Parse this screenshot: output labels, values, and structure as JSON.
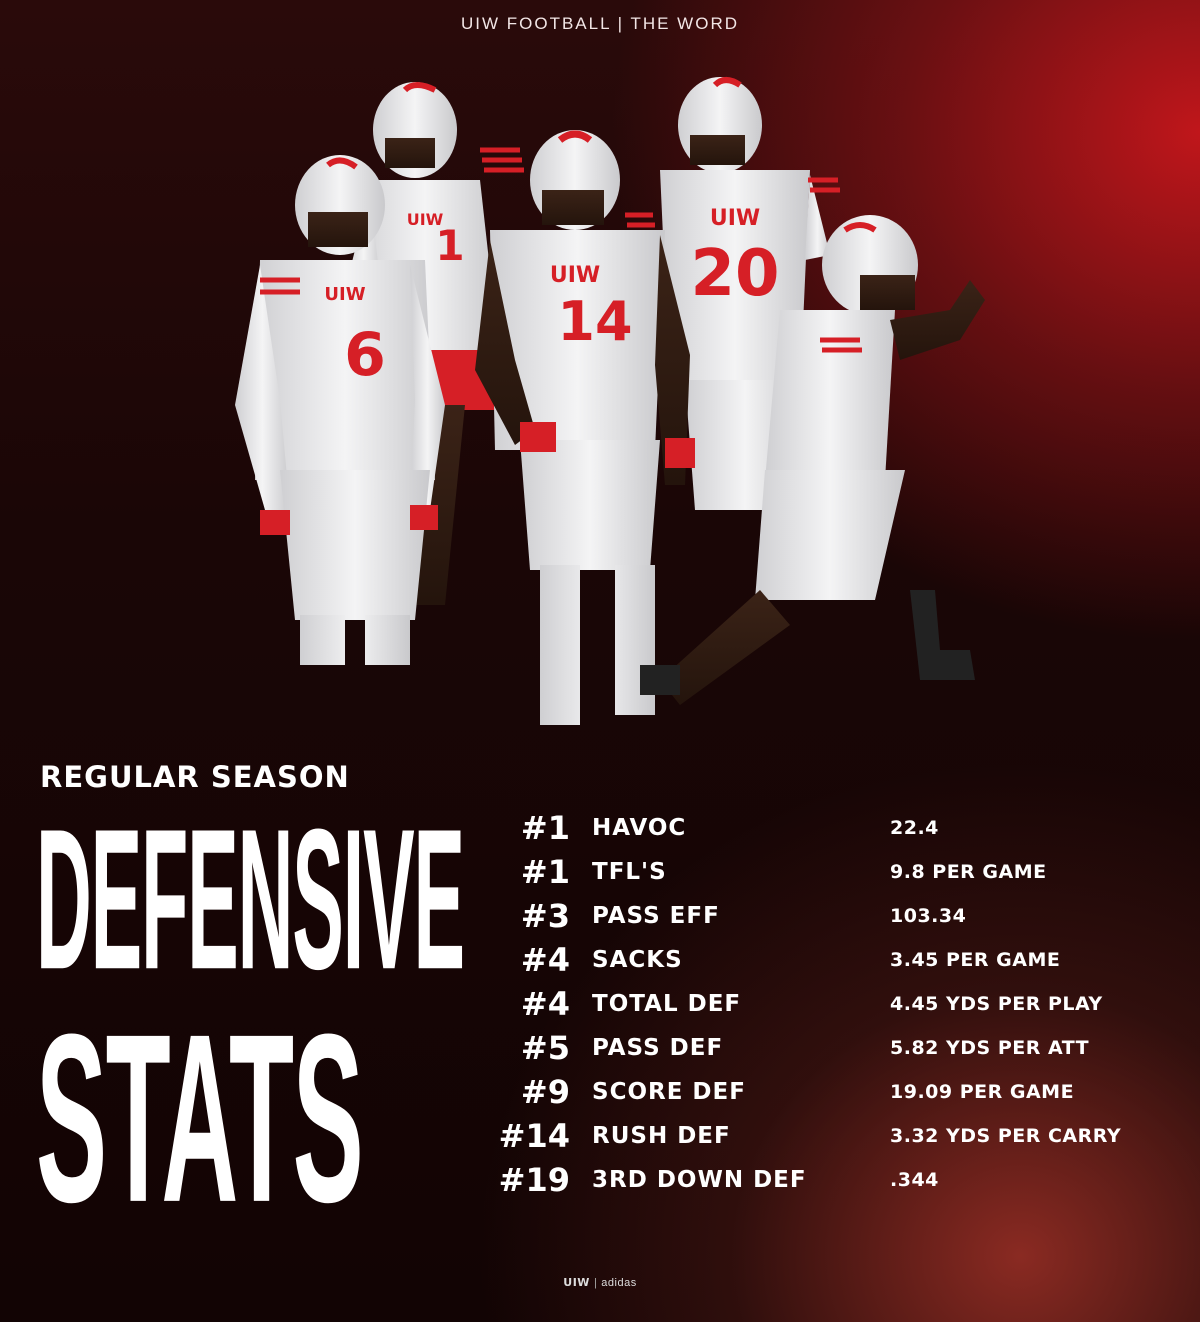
{
  "header": {
    "title": "UIW FOOTBALL | THE WORD"
  },
  "headline": {
    "kicker": "REGULAR SEASON",
    "line1": "DEFENSIVE",
    "line2": "STATS"
  },
  "stats": [
    {
      "rank": "#1",
      "category": "HAVOC",
      "value": "22.4"
    },
    {
      "rank": "#1",
      "category": "TFL'S",
      "value": "9.8 PER GAME"
    },
    {
      "rank": "#3",
      "category": "PASS EFF",
      "value": "103.34"
    },
    {
      "rank": "#4",
      "category": "SACKS",
      "value": "3.45 PER GAME"
    },
    {
      "rank": "#4",
      "category": "TOTAL DEF",
      "value": "4.45 YDS PER PLAY"
    },
    {
      "rank": "#5",
      "category": "PASS DEF",
      "value": "5.82 YDS PER ATT"
    },
    {
      "rank": "#9",
      "category": "SCORE DEF",
      "value": "19.09 PER GAME"
    },
    {
      "rank": "#14",
      "category": "RUSH DEF",
      "value": "3.32 YDS PER CARRY"
    },
    {
      "rank": "#19",
      "category": "3RD DOWN DEF",
      "value": ".344"
    }
  ],
  "players": [
    {
      "jersey_text": "UIW",
      "number": "6"
    },
    {
      "jersey_text": "UIW",
      "number": "1"
    },
    {
      "jersey_text": "UIW",
      "number": "14"
    },
    {
      "jersey_text": "UIW",
      "number": "20"
    },
    {
      "jersey_text": "",
      "number": ""
    }
  ],
  "footer": {
    "left": "UIW",
    "right": "adidas"
  },
  "colors": {
    "accent": "#c0161b",
    "jersey": "#ececec",
    "trim": "#d61f26"
  }
}
